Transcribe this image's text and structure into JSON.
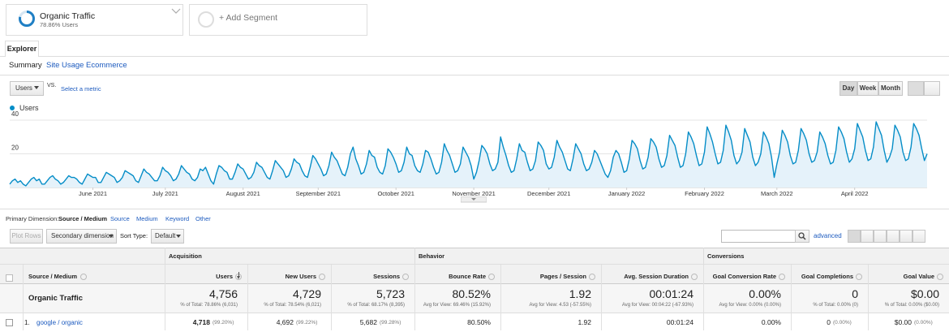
{
  "segments": {
    "name": "Organic Traffic",
    "sub": "78.86% Users",
    "add": "+ Add Segment"
  },
  "tabs": {
    "active": "Explorer",
    "links": [
      "Summary",
      "Site Usage",
      "Ecommerce"
    ]
  },
  "controls": {
    "metric": "Users",
    "vs": "VS.",
    "select": "Select a metric",
    "periods": [
      "Day",
      "Week",
      "Month"
    ]
  },
  "chart_data": {
    "type": "line",
    "series": [
      {
        "name": "Users",
        "color": "#058dc7",
        "values": [
          2,
          4,
          5,
          3,
          4,
          2,
          1,
          3,
          5,
          6,
          4,
          5,
          2,
          2,
          4,
          6,
          7,
          5,
          4,
          2,
          3,
          5,
          7,
          6,
          6,
          5,
          3,
          2,
          5,
          8,
          7,
          6,
          6,
          3,
          3,
          6,
          9,
          8,
          7,
          6,
          3,
          4,
          6,
          10,
          9,
          8,
          7,
          4,
          3,
          7,
          11,
          9,
          8,
          6,
          4,
          4,
          7,
          12,
          10,
          9,
          7,
          4,
          5,
          8,
          13,
          11,
          9,
          8,
          5,
          4,
          6,
          11,
          10,
          12,
          8,
          4,
          2,
          8,
          13,
          12,
          10,
          9,
          5,
          5,
          9,
          14,
          12,
          11,
          8,
          5,
          6,
          9,
          15,
          13,
          12,
          9,
          6,
          5,
          10,
          16,
          14,
          12,
          10,
          6,
          7,
          11,
          17,
          15,
          14,
          10,
          7,
          6,
          12,
          19,
          17,
          14,
          11,
          7,
          8,
          13,
          21,
          18,
          16,
          12,
          8,
          7,
          12,
          20,
          24,
          17,
          13,
          8,
          9,
          14,
          22,
          19,
          18,
          12,
          9,
          8,
          13,
          23,
          21,
          18,
          14,
          9,
          10,
          15,
          24,
          20,
          19,
          13,
          10,
          9,
          14,
          22,
          21,
          17,
          12,
          8,
          9,
          15,
          26,
          22,
          19,
          14,
          9,
          10,
          14,
          24,
          21,
          18,
          13,
          5,
          9,
          16,
          25,
          23,
          20,
          14,
          10,
          11,
          15,
          30,
          24,
          19,
          13,
          9,
          10,
          17,
          26,
          22,
          21,
          15,
          10,
          11,
          16,
          27,
          25,
          22,
          14,
          11,
          12,
          18,
          28,
          24,
          21,
          16,
          11,
          10,
          17,
          26,
          23,
          20,
          14,
          10,
          11,
          15,
          22,
          20,
          16,
          12,
          8,
          6,
          10,
          18,
          22,
          20,
          15,
          9,
          10,
          17,
          28,
          26,
          23,
          16,
          11,
          12,
          18,
          29,
          27,
          24,
          17,
          12,
          13,
          19,
          31,
          28,
          25,
          18,
          12,
          13,
          20,
          33,
          30,
          26,
          19,
          13,
          14,
          21,
          36,
          32,
          27,
          20,
          14,
          15,
          22,
          37,
          33,
          28,
          19,
          14,
          16,
          21,
          35,
          31,
          27,
          18,
          13,
          15,
          20,
          33,
          30,
          26,
          18,
          6,
          14,
          21,
          34,
          31,
          27,
          19,
          14,
          15,
          22,
          35,
          32,
          28,
          20,
          15,
          16,
          21,
          33,
          30,
          26,
          19,
          14,
          15,
          22,
          36,
          33,
          29,
          21,
          15,
          17,
          23,
          38,
          34,
          30,
          22,
          16,
          17,
          24,
          39,
          35,
          31,
          22,
          15,
          18,
          23,
          37,
          34,
          30,
          21,
          16,
          17,
          24,
          38,
          35,
          31,
          23,
          16,
          20
        ]
      }
    ],
    "xlim": [
      0,
      342
    ],
    "xticks": [
      {
        "value": 31,
        "label": "June 2021"
      },
      {
        "value": 58,
        "label": "July 2021"
      },
      {
        "value": 87,
        "label": "August 2021"
      },
      {
        "value": 115,
        "label": "September 2021"
      },
      {
        "value": 144,
        "label": "October 2021"
      },
      {
        "value": 173,
        "label": "November 2021"
      },
      {
        "value": 201,
        "label": "December 2021"
      },
      {
        "value": 230,
        "label": "January 2022"
      },
      {
        "value": 259,
        "label": "February 2022"
      },
      {
        "value": 286,
        "label": "March 2022"
      },
      {
        "value": 315,
        "label": "April 2022"
      }
    ],
    "ylim": [
      0,
      40
    ],
    "yticks": [
      20,
      40
    ],
    "grid": true,
    "legend": "top-left"
  },
  "dimensions": {
    "label": "Primary Dimension:",
    "active": "Source / Medium",
    "links": [
      "Source",
      "Medium",
      "Keyword",
      "Other"
    ]
  },
  "toolbar": {
    "plot": "Plot Rows",
    "secondary": "Secondary dimension",
    "sort_label": "Sort Type:",
    "sort": "Default",
    "advanced": "advanced"
  },
  "table": {
    "groups": [
      "Acquisition",
      "Behavior",
      "Conversions"
    ],
    "columns": [
      "Source / Medium",
      "Users",
      "New Users",
      "Sessions",
      "Bounce Rate",
      "Pages / Session",
      "Avg. Session Duration",
      "Goal Conversion Rate",
      "Goal Completions",
      "Goal Value"
    ],
    "total": {
      "label": "Organic Traffic",
      "cells": [
        {
          "value": "4,756",
          "sub": "% of Total: 78.86% (6,031)"
        },
        {
          "value": "4,729",
          "sub": "% of Total: 78.54% (6,021)"
        },
        {
          "value": "5,723",
          "sub": "% of Total: 68.17% (8,395)"
        },
        {
          "value": "80.52%",
          "sub": "Avg for View: 69.46% (15.92%)"
        },
        {
          "value": "1.92",
          "sub": "Avg for View: 4.53 (-57.55%)"
        },
        {
          "value": "00:01:24",
          "sub": "Avg for View: 00:04:22 (-67.93%)"
        },
        {
          "value": "0.00%",
          "sub": "Avg for View: 0.00% (0.00%)"
        },
        {
          "value": "0",
          "sub": "% of Total: 0.00% (0)"
        },
        {
          "value": "$0.00",
          "sub": "% of Total: 0.00% ($0.00)"
        }
      ]
    },
    "rows": [
      {
        "index": "1.",
        "label": "google / organic",
        "cells": [
          {
            "value": "4,718",
            "pct": "(99.20%)"
          },
          {
            "value": "4,692",
            "pct": "(99.22%)"
          },
          {
            "value": "5,682",
            "pct": "(99.28%)"
          },
          {
            "value": "80.50%"
          },
          {
            "value": "1.92"
          },
          {
            "value": "00:01:24"
          },
          {
            "value": "0.00%"
          },
          {
            "value": "0",
            "pct": "(0.00%)"
          },
          {
            "value": "$0.00",
            "pct": "(0.00%)"
          }
        ]
      }
    ]
  }
}
